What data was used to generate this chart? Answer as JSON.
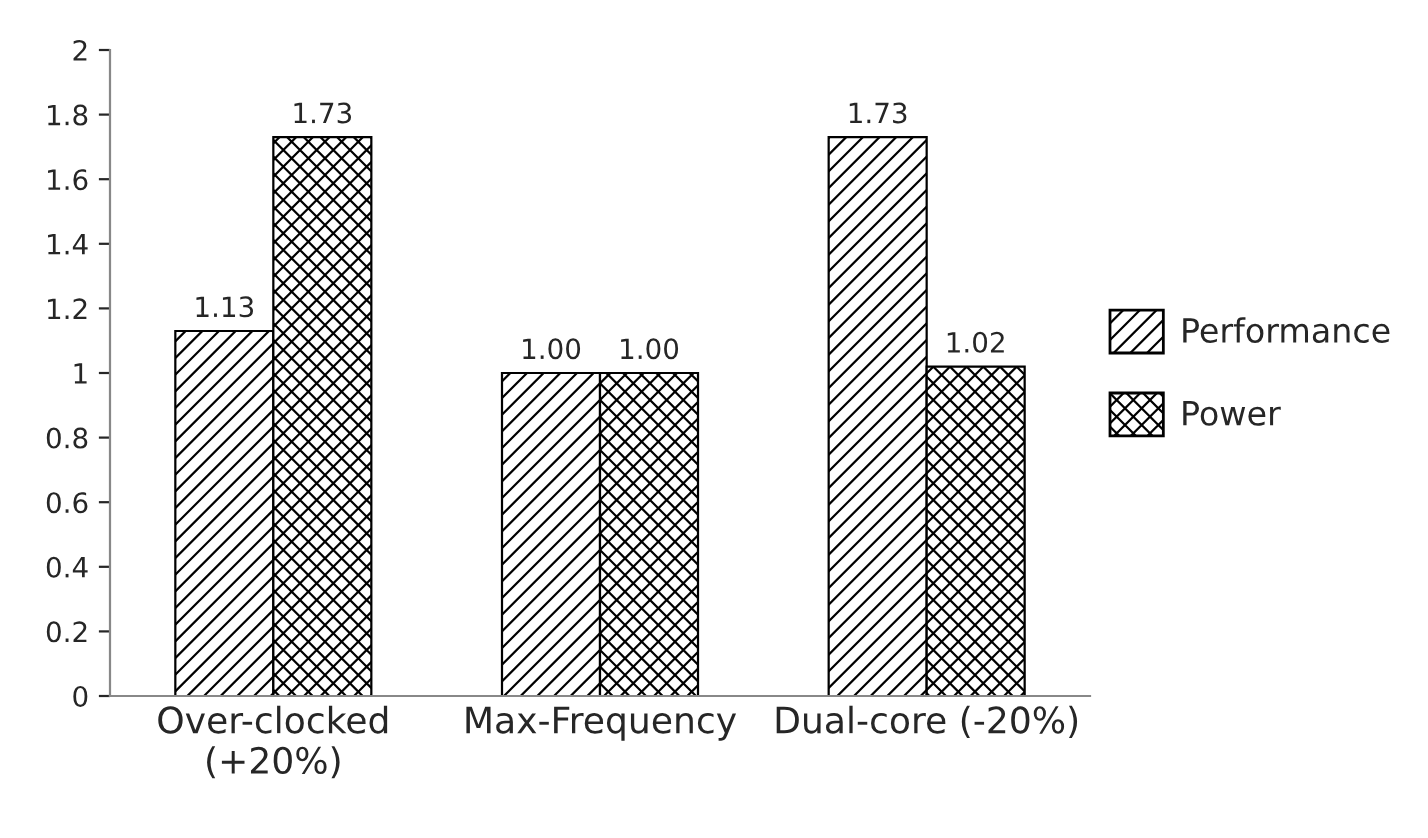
{
  "chart_data": {
    "type": "bar",
    "categories": [
      "Over-clocked\n(+20%)",
      "Max-Frequency",
      "Dual-core (-20%)"
    ],
    "series": [
      {
        "name": "Performance",
        "color": "#000000",
        "values": [
          1.13,
          1.0,
          1.73
        ],
        "value_labels": [
          "1.13",
          "1.00",
          "1.73"
        ]
      },
      {
        "name": "Power",
        "color": "#000000",
        "values": [
          1.73,
          1.0,
          1.02
        ],
        "value_labels": [
          "1.73",
          "1.00",
          "1.02"
        ]
      }
    ],
    "ylim": [
      0,
      2
    ],
    "yticks": [
      0,
      0.2,
      0.4,
      0.6,
      0.8,
      1,
      1.2,
      1.4,
      1.6,
      1.8,
      2
    ],
    "grid": false,
    "legend": "right"
  }
}
